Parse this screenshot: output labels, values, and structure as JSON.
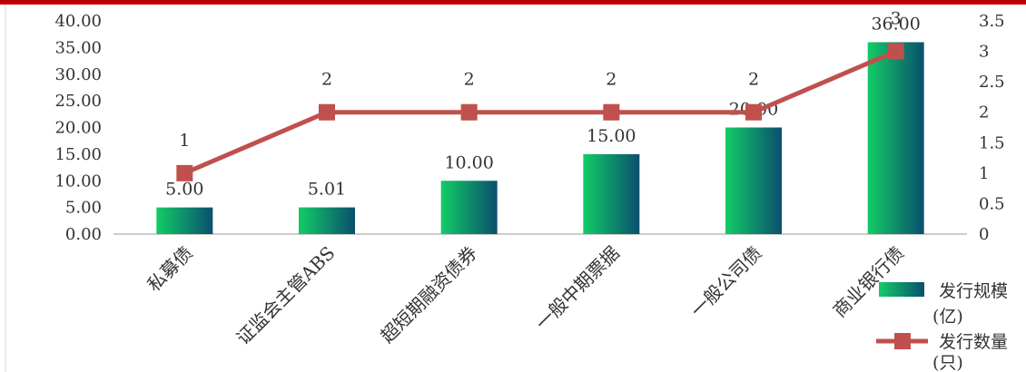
{
  "chart_data": {
    "type": "bar",
    "categories": [
      "私募债",
      "证监会主管ABS",
      "超短期融资债券",
      "一般中期票据",
      "一般公司债",
      "商业银行债"
    ],
    "series": [
      {
        "name": "发行规模(亿)",
        "type": "bar",
        "axis": "left",
        "values": [
          5.0,
          5.01,
          10.0,
          15.0,
          20.0,
          36.0
        ],
        "labels": [
          "5.00",
          "5.01",
          "10.00",
          "15.00",
          "20.00",
          "36.00"
        ]
      },
      {
        "name": "发行数量(只)",
        "type": "line",
        "axis": "right",
        "values": [
          1,
          2,
          2,
          2,
          2,
          3
        ],
        "labels": [
          "1",
          "2",
          "2",
          "2",
          "2",
          "3"
        ]
      }
    ],
    "y_left": {
      "ylim": [
        0,
        40
      ],
      "ticks": [
        "0.00",
        "5.00",
        "10.00",
        "15.00",
        "20.00",
        "25.00",
        "30.00",
        "35.00",
        "40.00"
      ]
    },
    "y_right": {
      "ylim": [
        0,
        3.5
      ],
      "ticks": [
        "0",
        "0.5",
        "1",
        "1.5",
        "2",
        "2.5",
        "3",
        "3.5"
      ]
    },
    "legend": {
      "placement": "bottom-right",
      "items": [
        {
          "line1": "发行规模",
          "line2": "(亿)"
        },
        {
          "line1": "发行数量",
          "line2": "(只)"
        }
      ]
    },
    "grid": false,
    "colors": {
      "top_border": "#c00000",
      "bar_start": "#12cc66",
      "bar_end": "#0a4f6e",
      "line": "#c0504d",
      "axis": "#999999"
    }
  }
}
